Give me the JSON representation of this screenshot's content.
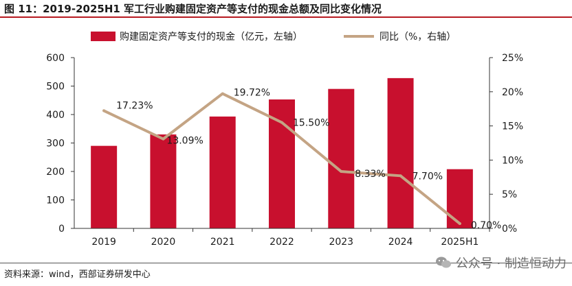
{
  "figure": {
    "title": "图 11：2019-2025H1 军工行业购建固定资产等支付的现金总额及同比变化情况",
    "source": "资料来源：wind，西部证券研发中心",
    "watermark": "公众号 · 制造恒动力"
  },
  "colors": {
    "bar": "#c8102e",
    "line": "#c4a484",
    "accent": "#b7191f"
  },
  "chart_data": {
    "type": "bar",
    "categories": [
      "2019",
      "2020",
      "2021",
      "2022",
      "2023",
      "2024",
      "2025H1"
    ],
    "series": [
      {
        "name": "购建固定资产等支付的现金（亿元，左轴）",
        "type": "bar",
        "axis": "left",
        "values": [
          290,
          330,
          393,
          453,
          490,
          528,
          208
        ]
      },
      {
        "name": "同比（%，右轴）",
        "type": "line",
        "axis": "right",
        "values": [
          17.23,
          13.09,
          19.72,
          15.5,
          8.33,
          7.7,
          0.7
        ],
        "labels": [
          "17.23%",
          "13.09%",
          "19.72%",
          "15.50%",
          "8.33%",
          "7.70%",
          "0.70%"
        ]
      }
    ],
    "y_left": {
      "ylim": [
        0,
        600
      ],
      "ticks": [
        "0",
        "100",
        "200",
        "300",
        "400",
        "500",
        "600"
      ]
    },
    "y_right": {
      "ylim": [
        0,
        25
      ],
      "ticks": [
        "0%",
        "5%",
        "10%",
        "15%",
        "20%",
        "25%"
      ]
    },
    "legend_position": "top-center"
  }
}
